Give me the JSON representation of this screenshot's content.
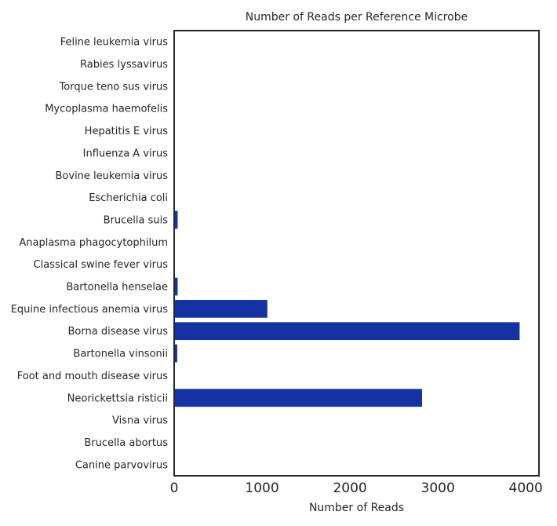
{
  "chart_data": {
    "type": "bar",
    "orientation": "horizontal",
    "title": "Number of Reads per Reference Microbe",
    "xlabel": "Number of Reads",
    "ylabel": "",
    "xlim": [
      0,
      4150
    ],
    "xticks": [
      0,
      1000,
      2000,
      3000,
      4000
    ],
    "xtick_labels": [
      "0",
      "1000",
      "2000",
      "3000",
      "4000"
    ],
    "grid": false,
    "legend": "none",
    "bar_color": "#1532a3",
    "categories": [
      "Feline leukemia virus",
      "Rabies lyssavirus",
      "Torque teno sus virus",
      "Mycoplasma haemofelis",
      "Hepatitis E virus",
      "Influenza A virus",
      "Bovine leukemia virus",
      "Escherichia coli",
      "Brucella suis",
      "Anaplasma phagocytophilum",
      "Classical swine fever virus",
      "Bartonella henselae",
      "Equine infectious anemia virus",
      "Borna disease virus",
      "Bartonella vinsonii",
      "Foot and mouth disease virus",
      "Neorickettsia risticii",
      "Visna virus",
      "Brucella abortus",
      "Canine parvovirus"
    ],
    "values": [
      2,
      2,
      3,
      3,
      3,
      4,
      4,
      6,
      40,
      8,
      6,
      40,
      1060,
      3930,
      35,
      6,
      2820,
      3,
      2,
      2
    ]
  }
}
